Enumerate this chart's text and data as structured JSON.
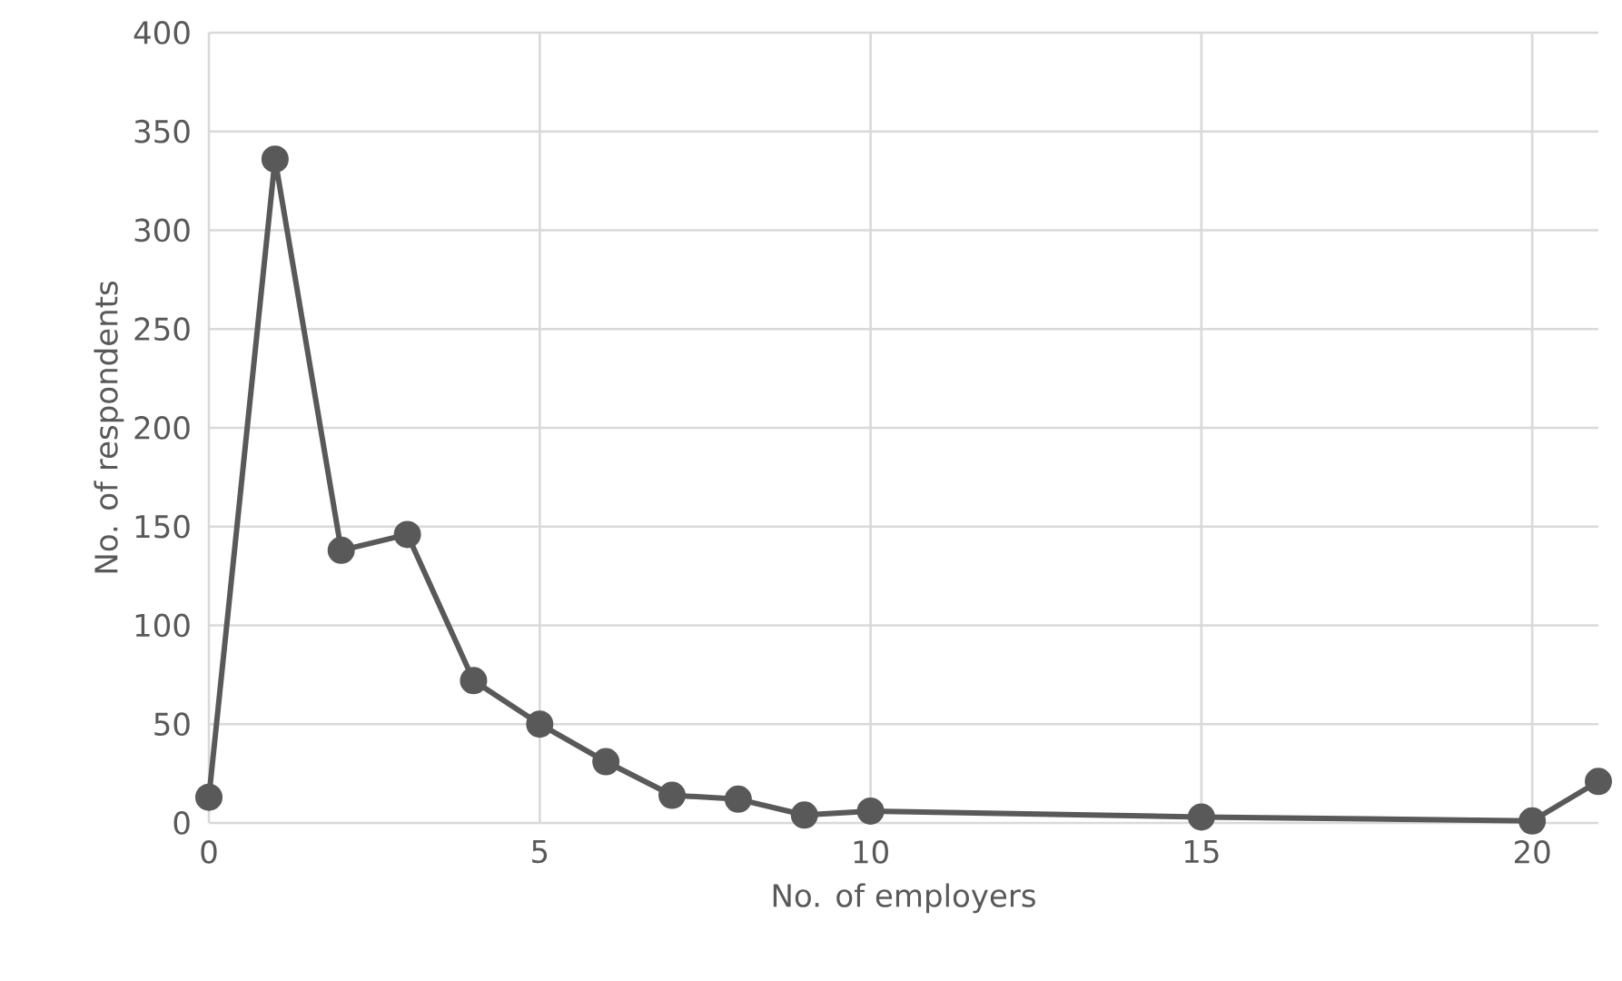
{
  "chart_data": {
    "type": "line",
    "xlabel": "No. of employers",
    "ylabel": "No. of respondents",
    "x": [
      0,
      1,
      2,
      3,
      4,
      5,
      6,
      7,
      8,
      9,
      10,
      15,
      20,
      21
    ],
    "series": [
      {
        "color": "#595959",
        "values": [
          13,
          336,
          138,
          146,
          72,
          50,
          31,
          14,
          12,
          4,
          6,
          3,
          1,
          21
        ]
      }
    ],
    "xlim": [
      0,
      21
    ],
    "ylim": [
      0,
      400
    ],
    "xticks": [
      0,
      5,
      10,
      15,
      20
    ],
    "yticks": [
      0,
      50,
      100,
      150,
      200,
      250,
      300,
      350,
      400
    ],
    "grid": true,
    "marker": "circle",
    "line_style": "solid"
  }
}
